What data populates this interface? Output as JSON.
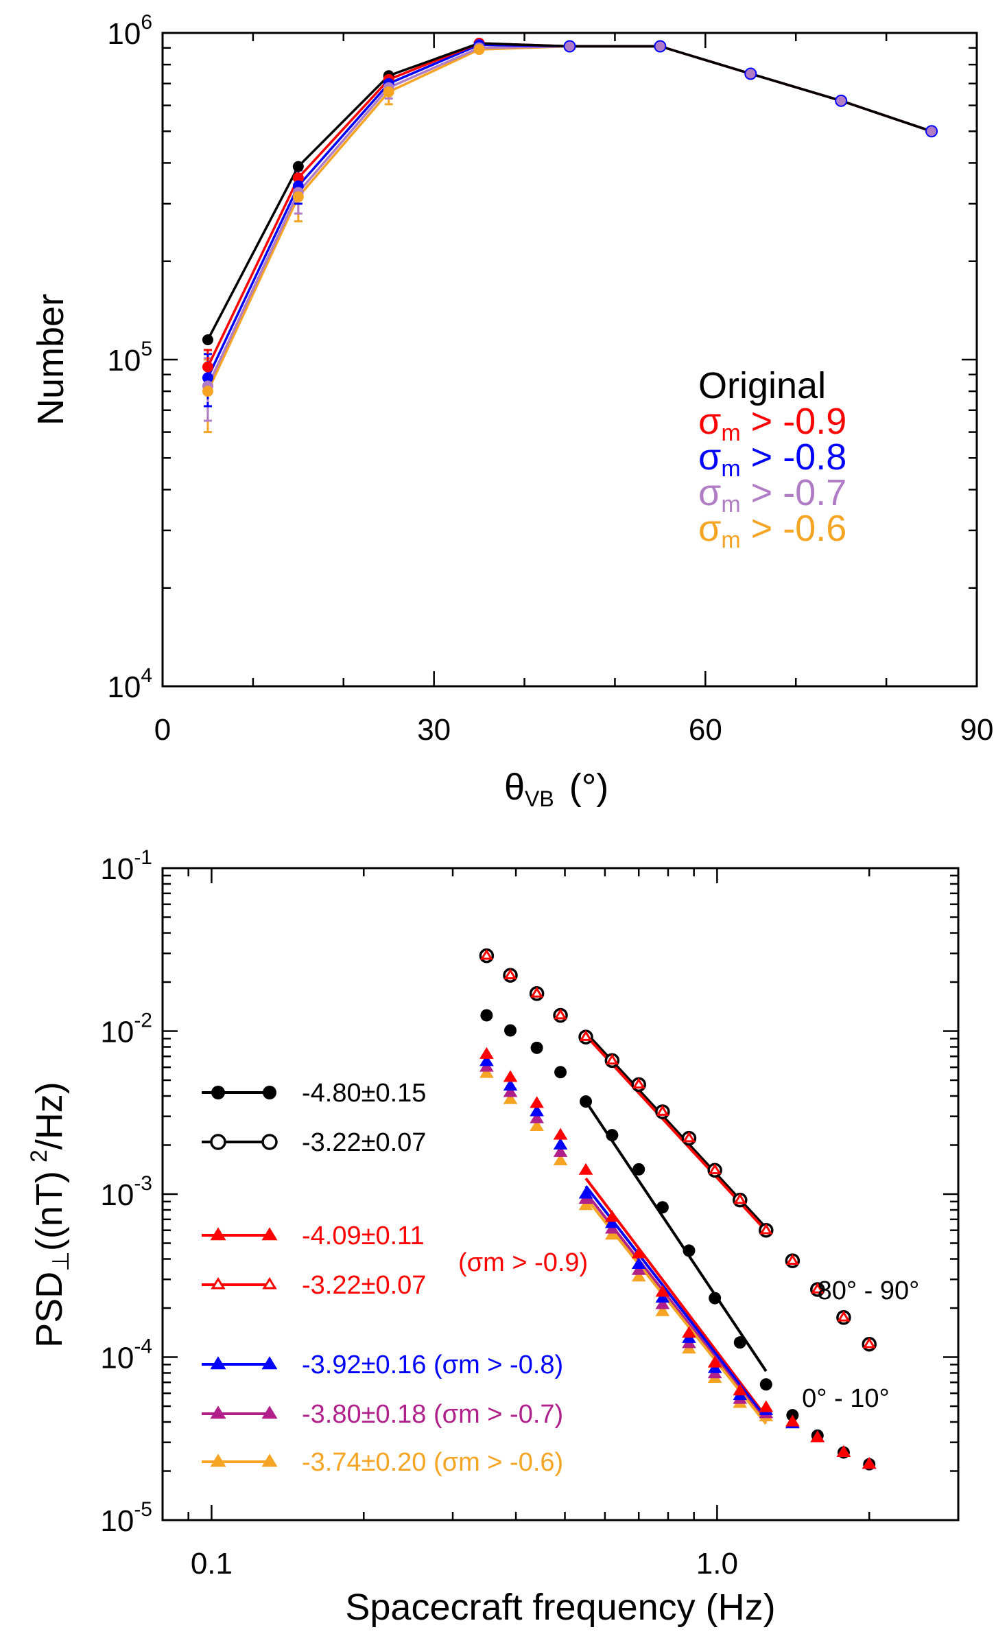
{
  "colors": {
    "original": "#000000",
    "s09": "#ff0000",
    "s08": "#0000ff",
    "s07_top": "#b07cc6",
    "s07_bottom": "#b0208a",
    "s06": "#f6a423"
  },
  "chart_data": [
    {
      "type": "line",
      "xlabel_main": "θ",
      "xlabel_sub": "VB",
      "xlabel_unit": "(°)",
      "ylabel": "Number",
      "xlim": [
        0,
        90
      ],
      "ylim": [
        10000,
        1000000
      ],
      "yscale": "log",
      "xticks": [
        "0",
        "30",
        "60",
        "90"
      ],
      "yticks": [
        {
          "base": "10",
          "exp": "4"
        },
        {
          "base": "10",
          "exp": "5"
        },
        {
          "base": "10",
          "exp": "6"
        }
      ],
      "legend_position": "right-middle",
      "x": [
        5,
        15,
        25,
        35,
        45,
        55,
        65,
        75,
        85
      ],
      "series": [
        {
          "name": "Original",
          "legend_prefix": "",
          "legend_sub": "",
          "legend_suffix": "Original",
          "color_key": "original",
          "values": [
            115000,
            390000,
            740000,
            930000,
            910000,
            910000,
            750000,
            620000,
            500000
          ],
          "err": [
            0,
            0,
            0,
            0,
            0,
            0,
            0,
            0,
            0
          ]
        },
        {
          "name": "σm > -0.9",
          "legend_prefix": "σ",
          "legend_sub": "m",
          "legend_suffix": " > -0.9",
          "color_key": "s09",
          "values": [
            95000,
            360000,
            720000,
            930000,
            910000,
            910000,
            750000,
            620000,
            500000
          ],
          "err": [
            12000,
            30000,
            30000,
            0,
            0,
            0,
            0,
            0,
            0
          ]
        },
        {
          "name": "σm > -0.8",
          "legend_prefix": "σ",
          "legend_sub": "m",
          "legend_suffix": " > -0.8",
          "color_key": "s08",
          "values": [
            88000,
            340000,
            700000,
            920000,
            910000,
            910000,
            750000,
            620000,
            500000
          ],
          "err": [
            16000,
            40000,
            40000,
            5000,
            0,
            0,
            0,
            0,
            0
          ]
        },
        {
          "name": "σm > -0.7",
          "legend_prefix": "σ",
          "legend_sub": "m",
          "legend_suffix": " > -0.7",
          "color_key": "s07_top",
          "values": [
            83000,
            325000,
            680000,
            900000,
            910000,
            910000,
            750000,
            620000,
            500000
          ],
          "err": [
            18000,
            45000,
            50000,
            8000,
            0,
            0,
            0,
            0,
            0
          ]
        },
        {
          "name": "σm > -0.6",
          "legend_prefix": "σ",
          "legend_sub": "m",
          "legend_suffix": " > -0.6",
          "color_key": "s06",
          "values": [
            80000,
            315000,
            660000,
            890000,
            910000,
            910000,
            750000,
            620000,
            500000
          ],
          "err": [
            20000,
            50000,
            55000,
            10000,
            0,
            0,
            0,
            0,
            0
          ]
        }
      ]
    },
    {
      "type": "scatter",
      "xlabel": "Spacecraft frequency (Hz)",
      "ylabel_main": "PSD",
      "ylabel_sub": "⊥",
      "ylabel_tail": "((nT)",
      "ylabel_sup": "2",
      "ylabel_end": "/Hz)",
      "xscale": "log",
      "yscale": "log",
      "xlim": [
        0.08,
        3.0
      ],
      "ylim": [
        1e-05,
        0.1
      ],
      "xticks": [
        "0.1",
        "1.0"
      ],
      "yticks": [
        {
          "base": "10",
          "exp": "-5"
        },
        {
          "base": "10",
          "exp": "-4"
        },
        {
          "base": "10",
          "exp": "-3"
        },
        {
          "base": "10",
          "exp": "-2"
        },
        {
          "base": "10",
          "exp": "-1"
        }
      ],
      "annotations": [
        {
          "text": "80° - 90°",
          "x": 1.65,
          "y": 0.00026
        },
        {
          "text": "0° - 10°",
          "x": 1.5,
          "y": 4.5e-05
        }
      ],
      "legend": [
        {
          "label": "-4.80±0.15",
          "suffix": "",
          "marker": "dot",
          "color_key": "original"
        },
        {
          "label": "-3.22±0.07",
          "suffix": "",
          "marker": "circle",
          "color_key": "original"
        },
        {
          "label": "-4.09±0.11",
          "suffix": "",
          "marker": "tri",
          "color_key": "s09"
        },
        {
          "label": "-3.22±0.07",
          "suffix": "",
          "marker": "tri-open",
          "color_key": "s09"
        },
        {
          "label": "-3.92±0.16",
          "suffix": " (σm > -0.8)",
          "marker": "tri",
          "color_key": "s08"
        },
        {
          "label": "-3.80±0.18",
          "suffix": " (σm > -0.7)",
          "marker": "tri",
          "color_key": "s07_bottom"
        },
        {
          "label": "-3.74±0.20",
          "suffix": " (σm > -0.6)",
          "marker": "tri",
          "color_key": "s06"
        }
      ],
      "group_label": "(σm > -0.9)",
      "x": [
        0.35,
        0.39,
        0.44,
        0.49,
        0.55,
        0.62,
        0.7,
        0.78,
        0.88,
        0.99,
        1.11,
        1.25,
        1.41,
        1.58,
        1.78,
        2.0
      ],
      "series": [
        {
          "name": "80°-90° original",
          "marker": "circle",
          "color_key": "original",
          "values": [
            0.029,
            0.022,
            0.017,
            0.0125,
            0.0092,
            0.0066,
            0.0047,
            0.0032,
            0.0022,
            0.0014,
            0.00092,
            0.0006,
            0.00039,
            0.00026,
            0.000175,
            0.00012
          ]
        },
        {
          "name": "80°-90° σm > -0.9",
          "marker": "tri-open",
          "color_key": "s09",
          "values": [
            0.029,
            0.022,
            0.017,
            0.0125,
            0.0092,
            0.0066,
            0.0047,
            0.0032,
            0.0022,
            0.0014,
            0.00092,
            0.0006,
            0.00039,
            0.00026,
            0.000175,
            0.00012
          ]
        },
        {
          "name": "0°-10° original",
          "marker": "dot",
          "color_key": "original",
          "values": [
            0.0125,
            0.0101,
            0.0079,
            0.0056,
            0.0037,
            0.0023,
            0.00142,
            0.00083,
            0.00045,
            0.00023,
            0.000123,
            6.8e-05,
            4.4e-05,
            3.3e-05,
            2.6e-05,
            2.2e-05
          ]
        },
        {
          "name": "0°-10° σm > -0.6",
          "marker": "tri",
          "color_key": "s06",
          "values": [
            0.0055,
            0.0038,
            0.0026,
            0.0016,
            0.00085,
            0.00056,
            0.00031,
            0.00019,
            0.000112,
            7.4e-05,
            5.2e-05,
            4.3e-05,
            3.9e-05,
            3.2e-05,
            2.6e-05,
            2.2e-05
          ]
        },
        {
          "name": "0°-10° σm > -0.7",
          "marker": "tri",
          "color_key": "s07_bottom",
          "values": [
            0.006,
            0.0042,
            0.0029,
            0.0018,
            0.00093,
            0.00061,
            0.00034,
            0.00021,
            0.000121,
            7.9e-05,
            5.5e-05,
            4.5e-05,
            3.9e-05,
            3.2e-05,
            2.6e-05,
            2.2e-05
          ]
        },
        {
          "name": "0°-10° σm > -0.8",
          "marker": "tri",
          "color_key": "s08",
          "values": [
            0.0065,
            0.0046,
            0.0032,
            0.002,
            0.001,
            0.00066,
            0.00037,
            0.00023,
            0.00013,
            8.5e-05,
            5.8e-05,
            4.7e-05,
            3.9e-05,
            3.2e-05,
            2.6e-05,
            2.2e-05
          ]
        },
        {
          "name": "0°-10° σm > -0.9",
          "marker": "tri",
          "color_key": "s09",
          "values": [
            0.0072,
            0.0052,
            0.0036,
            0.0023,
            0.0014,
            0.00072,
            0.00043,
            0.00025,
            0.00014,
            9.2e-05,
            6.2e-05,
            4.9e-05,
            4e-05,
            3.2e-05,
            2.6e-05,
            2.2e-05
          ]
        }
      ],
      "fits": [
        {
          "color_key": "original",
          "x": [
            0.55,
            1.25
          ],
          "y": [
            0.0037,
            8.2e-05
          ]
        },
        {
          "color_key": "original",
          "x": [
            0.55,
            1.25
          ],
          "y": [
            0.0098,
            0.00062
          ]
        },
        {
          "color_key": "s09",
          "x": [
            0.55,
            1.25
          ],
          "y": [
            0.0094,
            0.000595
          ]
        },
        {
          "color_key": "s09",
          "x": [
            0.55,
            1.25
          ],
          "y": [
            0.00125,
            4.3e-05
          ]
        },
        {
          "color_key": "s08",
          "x": [
            0.55,
            1.25
          ],
          "y": [
            0.00112,
            4.2e-05
          ]
        },
        {
          "color_key": "s07_bottom",
          "x": [
            0.55,
            1.25
          ],
          "y": [
            0.00102,
            4e-05
          ]
        },
        {
          "color_key": "s06",
          "x": [
            0.55,
            1.25
          ],
          "y": [
            0.00095,
            3.9e-05
          ]
        }
      ]
    }
  ]
}
